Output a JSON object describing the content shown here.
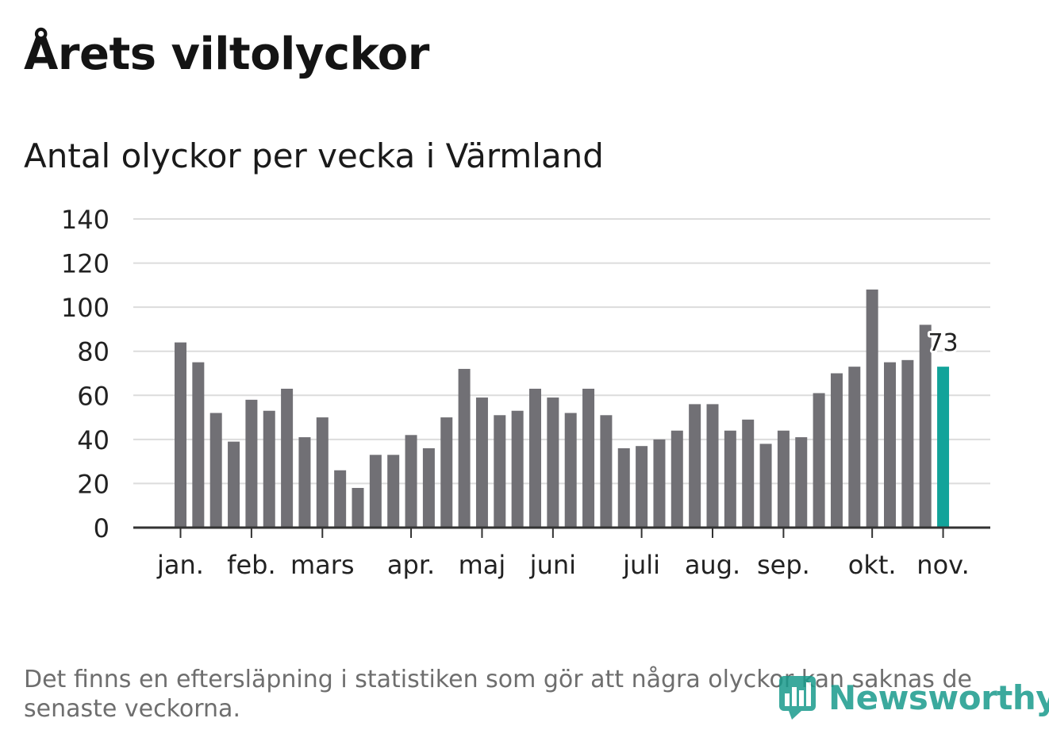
{
  "title": "Årets viltolyckor",
  "subtitle": "Antal olyckor per vecka i Värmland",
  "footnote": "Det finns en eftersläpning i statistiken som gör att några olyckor kan saknas de senaste veckorna.",
  "brand": {
    "name": "Newsworthy",
    "icon": "newsworthy-chart-icon",
    "color": "#1a9b8c"
  },
  "colors": {
    "bar": "#717075",
    "highlight": "#12a39a",
    "grid": "#dcdcdc",
    "axis": "#333333"
  },
  "chart_data": {
    "type": "bar",
    "title": "Antal olyckor per vecka i Värmland",
    "xlabel": "",
    "ylabel": "",
    "ylim": [
      0,
      140
    ],
    "yticks": [
      0,
      20,
      40,
      60,
      80,
      100,
      120,
      140
    ],
    "grid": true,
    "weeks": [
      1,
      2,
      3,
      4,
      5,
      6,
      7,
      8,
      9,
      10,
      11,
      12,
      13,
      14,
      15,
      16,
      17,
      18,
      19,
      20,
      21,
      22,
      23,
      24,
      25,
      26,
      27,
      28,
      29,
      30,
      31,
      32,
      33,
      34,
      35,
      36,
      37,
      38,
      39,
      40,
      41,
      42,
      43,
      44
    ],
    "values": [
      84,
      75,
      52,
      39,
      58,
      53,
      63,
      41,
      50,
      26,
      18,
      33,
      33,
      42,
      36,
      50,
      72,
      59,
      51,
      53,
      63,
      59,
      52,
      63,
      51,
      36,
      37,
      40,
      44,
      56,
      56,
      44,
      49,
      38,
      44,
      41,
      61,
      70,
      73,
      108,
      75,
      76,
      92,
      73
    ],
    "highlight_index": 43,
    "highlight_label": "73",
    "month_ticks": [
      {
        "label": "jan.",
        "position": 0
      },
      {
        "label": "feb.",
        "position": 4
      },
      {
        "label": "mars",
        "position": 8
      },
      {
        "label": "apr.",
        "position": 13
      },
      {
        "label": "maj",
        "position": 17
      },
      {
        "label": "juni",
        "position": 21
      },
      {
        "label": "juli",
        "position": 26
      },
      {
        "label": "aug.",
        "position": 30
      },
      {
        "label": "sep.",
        "position": 34
      },
      {
        "label": "okt.",
        "position": 39
      },
      {
        "label": "nov.",
        "position": 43
      }
    ]
  }
}
